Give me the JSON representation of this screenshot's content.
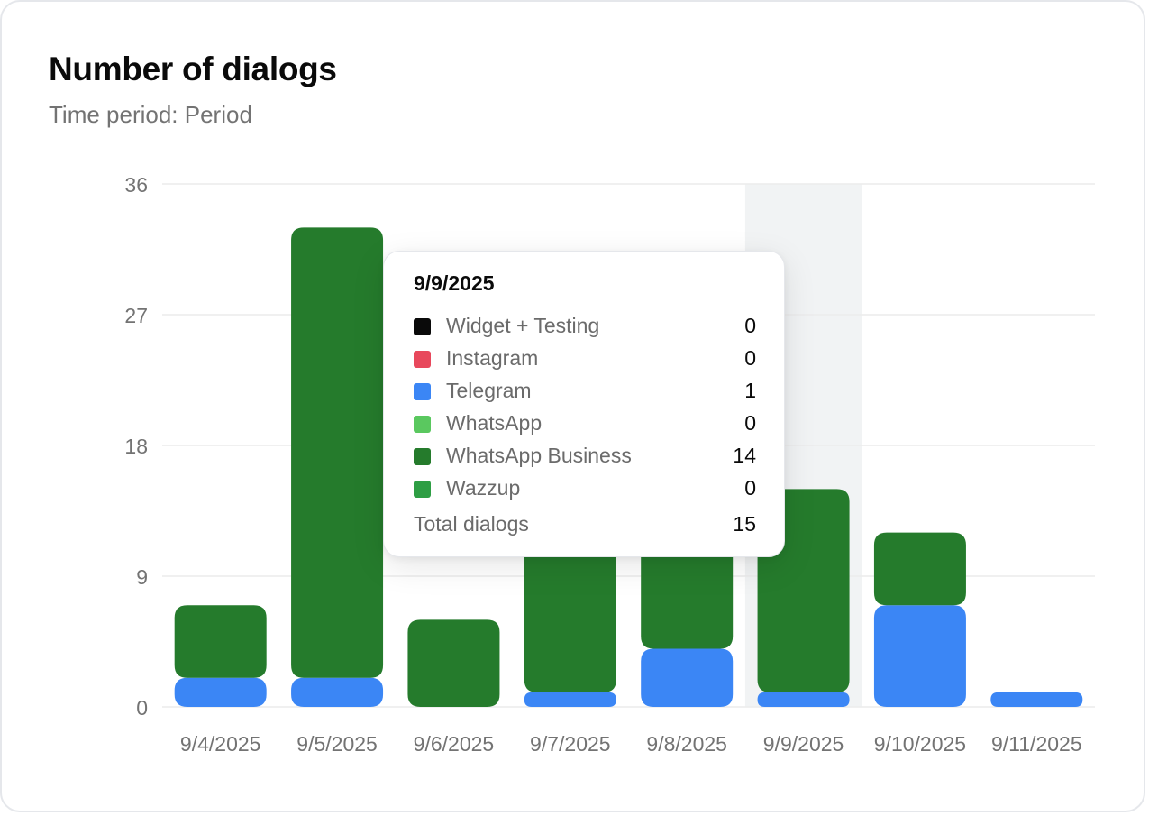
{
  "card": {
    "title": "Number of dialogs",
    "subtitle": "Time period: Period"
  },
  "chart_data": {
    "type": "bar",
    "stacked": true,
    "title": "Number of dialogs",
    "subtitle": "Time period: Period",
    "xlabel": "",
    "ylabel": "",
    "ylim": [
      0,
      36
    ],
    "yticks": [
      0,
      9,
      18,
      27,
      36
    ],
    "grid": true,
    "categories": [
      "9/4/2025",
      "9/5/2025",
      "9/6/2025",
      "9/7/2025",
      "9/8/2025",
      "9/9/2025",
      "9/10/2025",
      "9/11/2025"
    ],
    "series": [
      {
        "name": "Widget + Testing",
        "color": "#0a0a0a",
        "values": [
          0,
          0,
          0,
          0,
          0,
          0,
          0,
          0
        ]
      },
      {
        "name": "Instagram",
        "color": "#e8485c",
        "values": [
          0,
          0,
          0,
          0,
          0,
          0,
          0,
          0
        ]
      },
      {
        "name": "Telegram",
        "color": "#3b86f5",
        "values": [
          2,
          2,
          0,
          1,
          4,
          1,
          7,
          1
        ]
      },
      {
        "name": "WhatsApp",
        "color": "#5ac85f",
        "values": [
          0,
          0,
          0,
          0,
          0,
          0,
          0,
          0
        ]
      },
      {
        "name": "WhatsApp Business",
        "color": "#257b2c",
        "values": [
          5,
          31,
          6,
          27,
          21,
          14,
          5,
          0
        ]
      },
      {
        "name": "Wazzup",
        "color": "#2e9e44",
        "values": [
          0,
          0,
          0,
          0,
          0,
          0,
          0,
          0
        ]
      }
    ],
    "highlighted_category": "9/9/2025"
  },
  "tooltip": {
    "date": "9/9/2025",
    "rows": [
      {
        "label": "Widget + Testing",
        "value": "0",
        "color": "#0a0a0a"
      },
      {
        "label": "Instagram",
        "value": "0",
        "color": "#e8485c"
      },
      {
        "label": "Telegram",
        "value": "1",
        "color": "#3b86f5"
      },
      {
        "label": "WhatsApp",
        "value": "0",
        "color": "#5ac85f"
      },
      {
        "label": "WhatsApp Business",
        "value": "14",
        "color": "#257b2c"
      },
      {
        "label": "Wazzup",
        "value": "0",
        "color": "#2e9e44"
      }
    ],
    "total_label": "Total dialogs",
    "total_value": "15"
  }
}
